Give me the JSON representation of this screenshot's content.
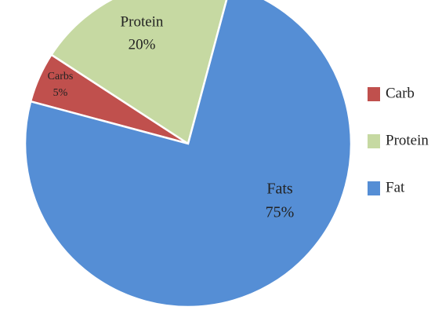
{
  "chart_data": {
    "type": "pie",
    "categories": [
      "Carb",
      "Protein",
      "Fat"
    ],
    "slice_labels": [
      "Carbs",
      "Protein",
      "Fats"
    ],
    "values": [
      5,
      20,
      75
    ],
    "value_labels": [
      "5%",
      "20%",
      "75%"
    ],
    "colors": [
      "#c0504d",
      "#c6d9a2",
      "#558ed5"
    ],
    "legend": "right"
  }
}
